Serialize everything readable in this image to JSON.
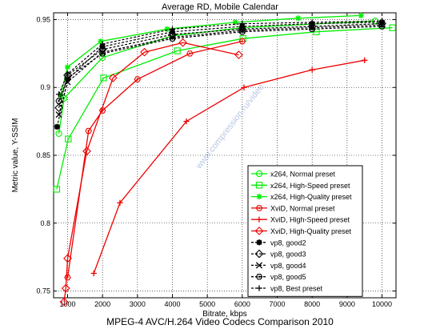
{
  "footer": "MPEG-4 AVC/H.264 Video Codecs Comparison 2010",
  "watermark": "www.compression.ru/video",
  "chart_data": {
    "type": "line",
    "title": "Average RD, Mobile Calendar",
    "xlabel": "Bitrate, kbps",
    "ylabel": "Metric value, Y-SSIM",
    "xlim": [
      600,
      10400
    ],
    "ylim": [
      0.745,
      0.955
    ],
    "xticks": [
      1000,
      2000,
      3000,
      4000,
      5000,
      6000,
      7000,
      8000,
      9000,
      10000
    ],
    "yticks": [
      0.75,
      0.8,
      0.85,
      0.9,
      0.95
    ],
    "ytick_labels": [
      "0.75",
      "0.8",
      "0.85",
      "0.9",
      "0.95"
    ],
    "grid": true,
    "legend_position": "bottom-right",
    "series": [
      {
        "name": "x264, Normal preset",
        "color": "#00ee00",
        "marker": "circle",
        "x": [
          750,
          900,
          2000,
          4000,
          6000,
          9800
        ],
        "y": [
          0.866,
          0.892,
          0.922,
          0.938,
          0.944,
          0.949
        ]
      },
      {
        "name": "x264, High-Speed preset",
        "color": "#00ee00",
        "marker": "square",
        "x": [
          690,
          1020,
          2030,
          4140,
          6020,
          8120,
          10300
        ],
        "y": [
          0.825,
          0.862,
          0.907,
          0.927,
          0.936,
          0.941,
          0.944
        ]
      },
      {
        "name": "x264, High-Quality preset",
        "color": "#00ee00",
        "marker": "star",
        "x": [
          800,
          1000,
          1950,
          3850,
          5800,
          7600,
          9400
        ],
        "y": [
          0.894,
          0.915,
          0.934,
          0.943,
          0.948,
          0.951,
          0.953
        ]
      },
      {
        "name": "XviD, Normal preset",
        "color": "#ee0000",
        "marker": "hexagon",
        "x": [
          1000,
          1600,
          2000,
          3000,
          4500,
          6000
        ],
        "y": [
          0.76,
          0.868,
          0.883,
          0.906,
          0.925,
          0.934
        ]
      },
      {
        "name": "XviD, High-Speed preset",
        "color": "#ee0000",
        "marker": "plus",
        "x": [
          1750,
          2500,
          4400,
          6050,
          8000,
          9500
        ],
        "y": [
          0.763,
          0.815,
          0.875,
          0.9,
          0.913,
          0.92
        ]
      },
      {
        "name": "XviD, High-Quality preset",
        "color": "#ee0000",
        "marker": "diamond",
        "x": [
          900,
          950,
          1000,
          1550,
          2300,
          3200,
          4300,
          5900
        ],
        "y": [
          0.742,
          0.752,
          0.774,
          0.853,
          0.907,
          0.926,
          0.933,
          0.924
        ]
      },
      {
        "name": "vp8, good2",
        "color": "#000000",
        "marker": "asterisk",
        "x": [
          700,
          1000,
          2000,
          4000,
          6000,
          8000,
          10000
        ],
        "y": [
          0.871,
          0.906,
          0.93,
          0.941,
          0.945,
          0.947,
          0.948
        ]
      },
      {
        "name": "vp8, good3",
        "color": "#000000",
        "marker": "diamond",
        "x": [
          750,
          1000,
          2000,
          4000,
          6000,
          8000,
          10000
        ],
        "y": [
          0.885,
          0.909,
          0.928,
          0.939,
          0.943,
          0.945,
          0.947
        ]
      },
      {
        "name": "vp8, good4",
        "color": "#000000",
        "marker": "x",
        "x": [
          750,
          1000,
          2000,
          4000,
          6000,
          8000,
          10000
        ],
        "y": [
          0.88,
          0.904,
          0.926,
          0.937,
          0.942,
          0.944,
          0.946
        ]
      },
      {
        "name": "vp8, good5",
        "color": "#000000",
        "marker": "hexagon",
        "x": [
          750,
          1000,
          2000,
          4000,
          6000,
          8000,
          10000
        ],
        "y": [
          0.89,
          0.907,
          0.925,
          0.936,
          0.941,
          0.943,
          0.945
        ]
      },
      {
        "name": "vp8, Best preset",
        "color": "#000000",
        "marker": "plus",
        "x": [
          750,
          1000,
          2000,
          4000,
          6000,
          8000,
          10000
        ],
        "y": [
          0.895,
          0.91,
          0.932,
          0.943,
          0.947,
          0.948,
          0.949
        ]
      }
    ]
  }
}
